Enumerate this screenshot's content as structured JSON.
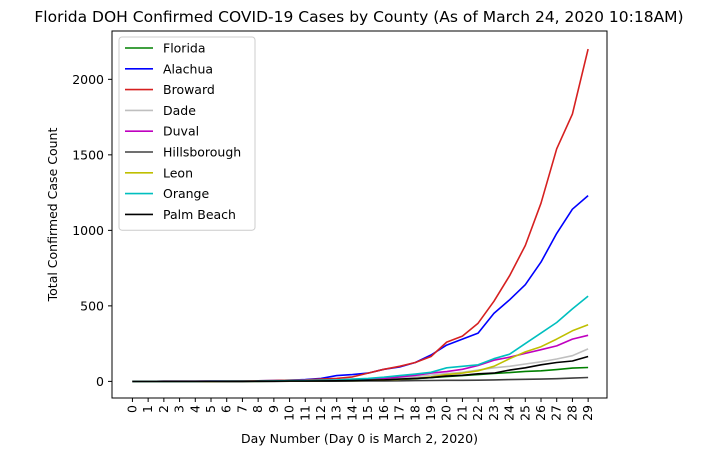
{
  "chart_data": {
    "type": "line",
    "title": "Florida DOH Confirmed COVID-19 Cases by County (As of March 24, 2020 10:18AM)",
    "xlabel": "Day Number (Day 0 is March 2, 2020)",
    "ylabel": "Total Confirmed Case Count",
    "x": [
      0,
      1,
      2,
      3,
      4,
      5,
      6,
      7,
      8,
      9,
      10,
      11,
      12,
      13,
      14,
      15,
      16,
      17,
      18,
      19,
      20,
      21,
      22,
      23,
      24,
      25,
      26,
      27,
      28,
      29
    ],
    "xlim": [
      -1.3,
      30.2
    ],
    "ylim": [
      -110,
      2320
    ],
    "yticks": [
      0,
      500,
      1000,
      1500,
      2000
    ],
    "grid": false,
    "legend_position": "upper-left",
    "series": [
      {
        "name": "Florida",
        "color": "#008000",
        "values": [
          0,
          0,
          0,
          0,
          0,
          0,
          0,
          0,
          0,
          1,
          1,
          2,
          3,
          3,
          4,
          5,
          8,
          12,
          18,
          25,
          32,
          38,
          45,
          52,
          58,
          66,
          70,
          78,
          88,
          92
        ]
      },
      {
        "name": "Alachua",
        "color": "#0000ff",
        "values": [
          0,
          0,
          1,
          1,
          1,
          2,
          2,
          3,
          4,
          6,
          8,
          12,
          20,
          38,
          45,
          55,
          80,
          95,
          125,
          175,
          240,
          280,
          320,
          450,
          540,
          640,
          790,
          980,
          1140,
          1230
        ]
      },
      {
        "name": "Broward",
        "color": "#d62020",
        "values": [
          0,
          0,
          1,
          1,
          1,
          2,
          2,
          3,
          4,
          6,
          8,
          10,
          15,
          20,
          30,
          55,
          80,
          100,
          125,
          165,
          260,
          300,
          385,
          530,
          700,
          900,
          1180,
          1540,
          1770,
          2200
        ]
      },
      {
        "name": "Dade",
        "color": "#bfbfbf",
        "values": [
          0,
          0,
          0,
          0,
          0,
          1,
          1,
          1,
          2,
          3,
          4,
          5,
          6,
          8,
          10,
          15,
          20,
          25,
          32,
          42,
          52,
          60,
          75,
          90,
          100,
          115,
          130,
          148,
          170,
          215
        ]
      },
      {
        "name": "Duval",
        "color": "#bf00bf",
        "values": [
          0,
          0,
          0,
          0,
          0,
          1,
          1,
          1,
          2,
          3,
          4,
          5,
          6,
          8,
          10,
          15,
          20,
          30,
          40,
          55,
          65,
          80,
          105,
          140,
          160,
          185,
          210,
          235,
          280,
          305
        ]
      },
      {
        "name": "Hillsborough",
        "color": "#404040",
        "values": [
          0,
          0,
          0,
          0,
          0,
          0,
          0,
          0,
          0,
          0,
          1,
          1,
          1,
          2,
          2,
          3,
          3,
          4,
          5,
          6,
          7,
          7,
          8,
          10,
          12,
          14,
          15,
          18,
          22,
          26
        ]
      },
      {
        "name": "Leon",
        "color": "#bfbf00",
        "values": [
          0,
          0,
          0,
          0,
          0,
          0,
          1,
          1,
          1,
          2,
          3,
          3,
          4,
          5,
          6,
          8,
          10,
          14,
          20,
          30,
          45,
          55,
          70,
          100,
          150,
          195,
          230,
          280,
          335,
          375
        ]
      },
      {
        "name": "Orange",
        "color": "#00bfbf",
        "values": [
          0,
          0,
          0,
          0,
          0,
          1,
          1,
          1,
          2,
          3,
          5,
          6,
          8,
          10,
          15,
          20,
          28,
          38,
          48,
          60,
          90,
          100,
          110,
          150,
          180,
          250,
          320,
          390,
          480,
          565
        ]
      },
      {
        "name": "Palm Beach",
        "color": "#000000",
        "values": [
          0,
          0,
          0,
          0,
          0,
          0,
          0,
          0,
          1,
          1,
          2,
          2,
          3,
          4,
          5,
          8,
          10,
          15,
          20,
          25,
          35,
          40,
          50,
          55,
          75,
          90,
          110,
          125,
          135,
          165
        ]
      }
    ]
  }
}
